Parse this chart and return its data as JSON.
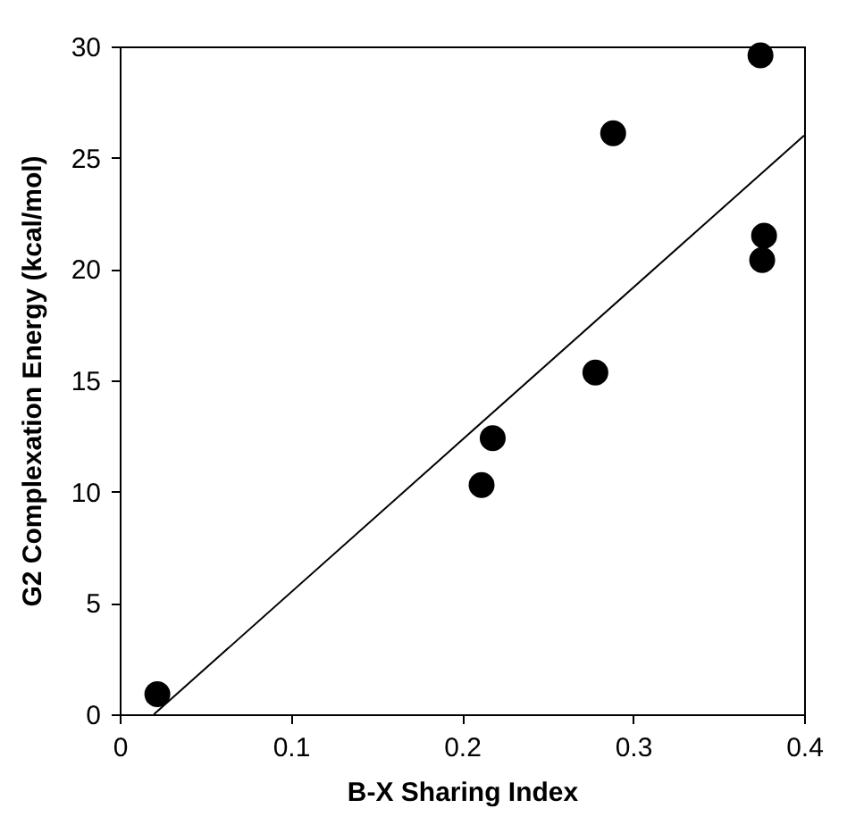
{
  "chart_data": {
    "type": "scatter",
    "xlabel": "B-X Sharing Index",
    "ylabel": "G2 Complexation Energy  (kcal/mol)",
    "grid": false,
    "xlim": [
      0,
      0.4
    ],
    "xticks": [
      0,
      0.1,
      0.2,
      0.3,
      0.4
    ],
    "ylim": [
      0,
      30
    ],
    "yticks": [
      0,
      5,
      10,
      15,
      20,
      25,
      30
    ],
    "series": [
      {
        "color": "#000000",
        "marker": "circle",
        "x": [
          0.022,
          0.2115,
          0.218,
          0.278,
          0.2884,
          0.3745,
          0.3755,
          0.3766
        ],
        "values": [
          0.9,
          10.3,
          12.4,
          15.35,
          26.1,
          29.6,
          20.4,
          21.5
        ]
      },
      {
        "type": "line",
        "color": "#000000",
        "x": [
          0.02,
          0.4
        ],
        "values": [
          0,
          26.0
        ]
      }
    ]
  }
}
